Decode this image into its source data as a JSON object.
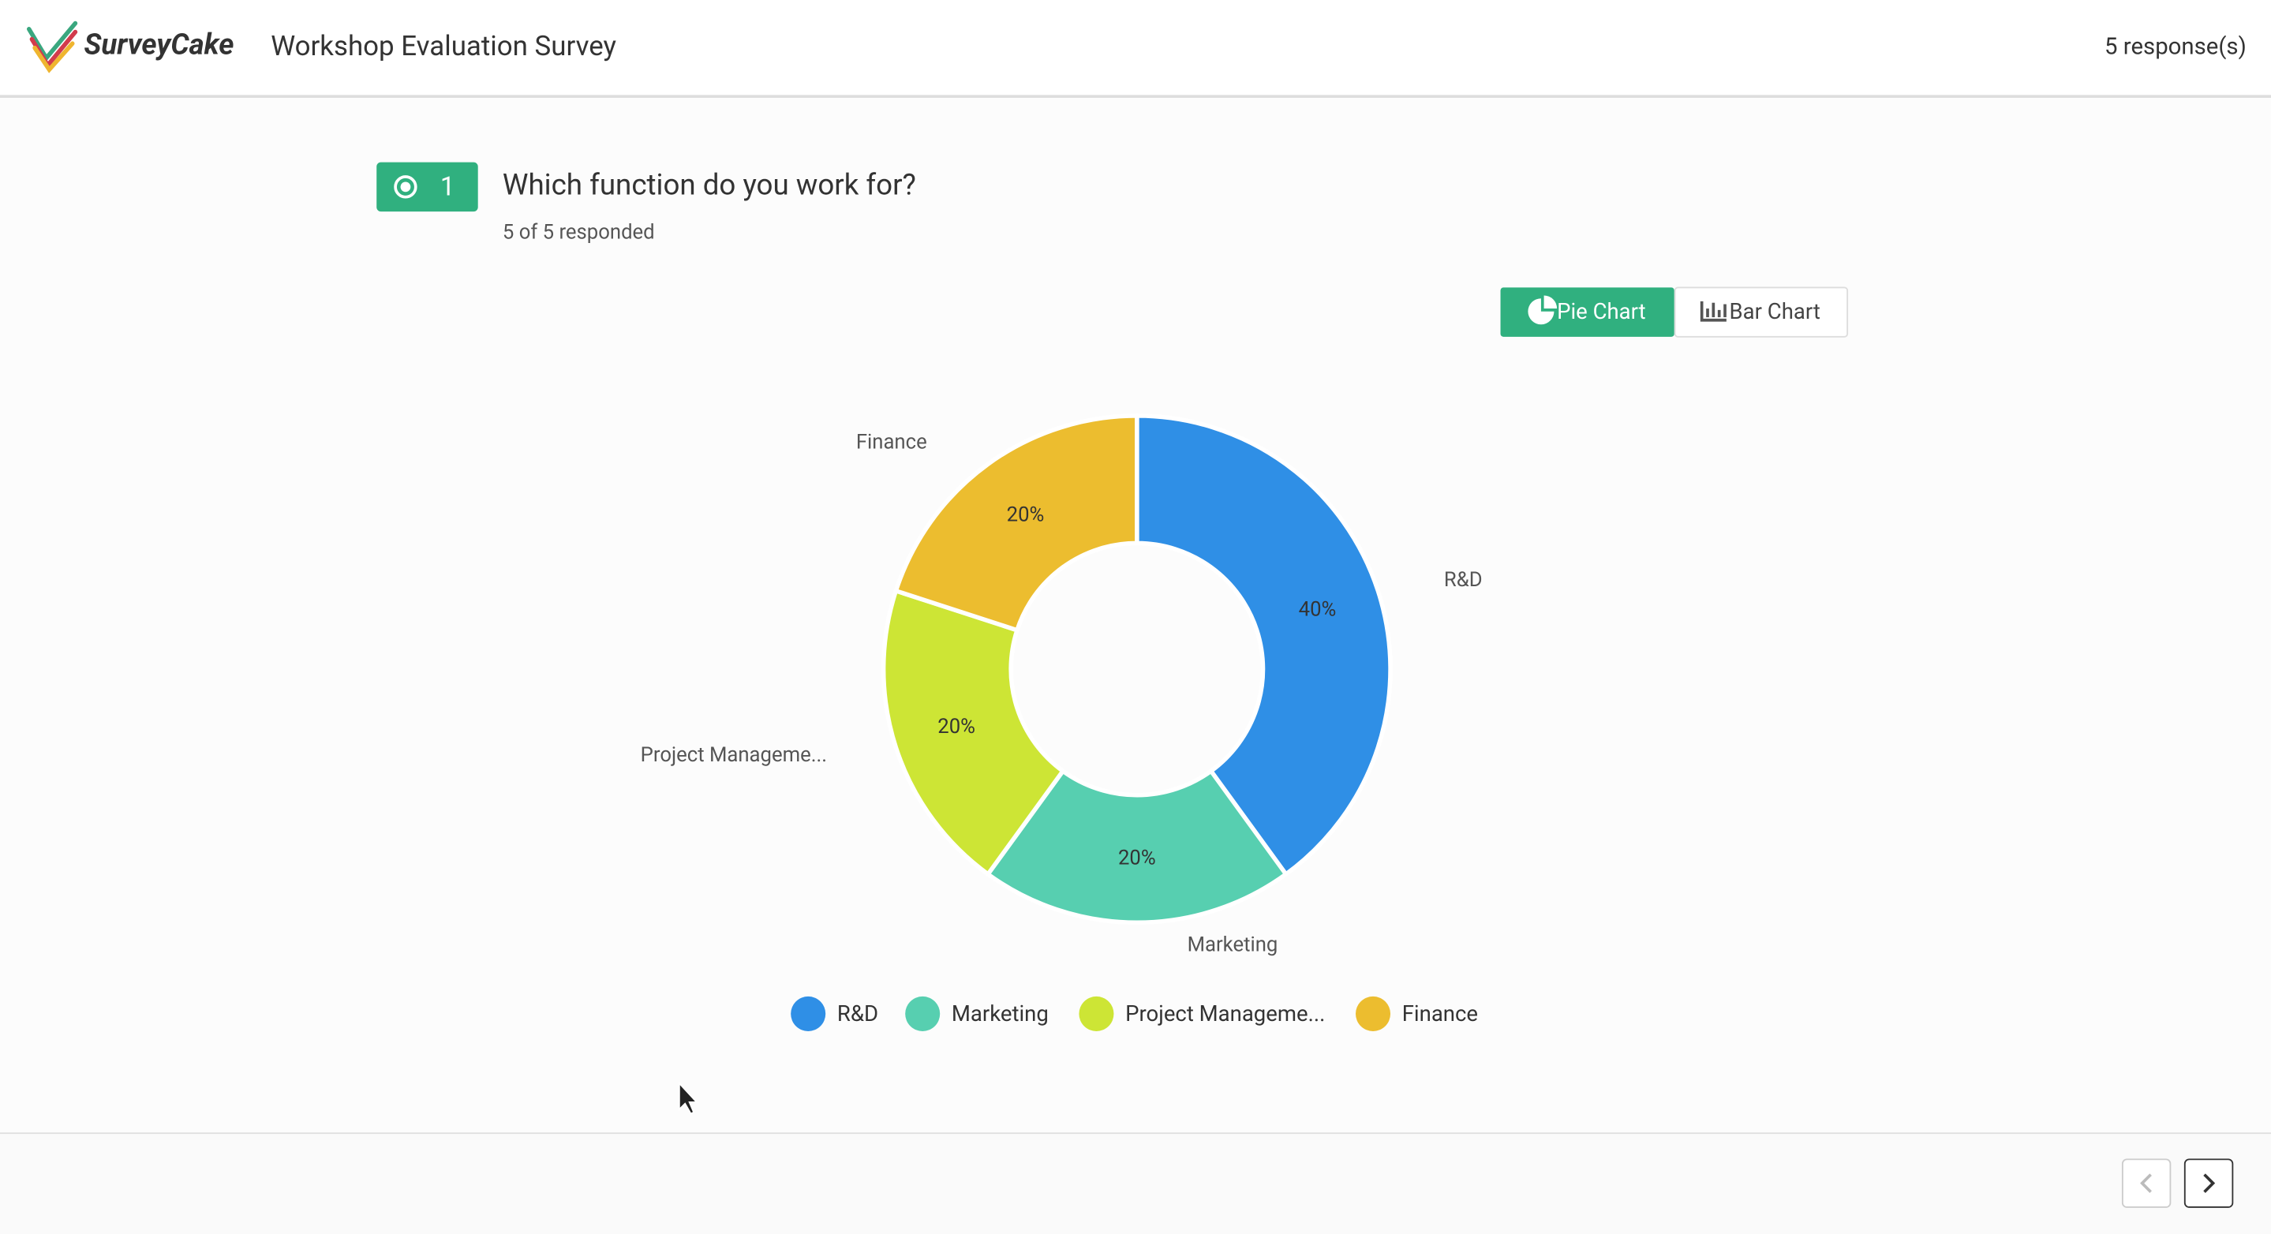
{
  "header": {
    "logo": "SurveyCake",
    "title": "Workshop Evaluation Survey",
    "responses": "5 response(s)"
  },
  "question": {
    "number": "1",
    "text": "Which function do you work for?",
    "responded": "5 of 5 responded"
  },
  "buttons": [
    "Pie Chart",
    "Bar Chart"
  ],
  "chart_data": {
    "type": "pie",
    "donut": true,
    "categories": [
      "R&D",
      "Marketing",
      "Project Manageme...",
      "Finance"
    ],
    "values": [
      40,
      20,
      20,
      20
    ],
    "value_labels": [
      "40%",
      "20%",
      "20%",
      "20%"
    ],
    "colors": [
      "#2f8fe6",
      "#57cfb0",
      "#cde535",
      "#ecbd2f"
    ]
  }
}
